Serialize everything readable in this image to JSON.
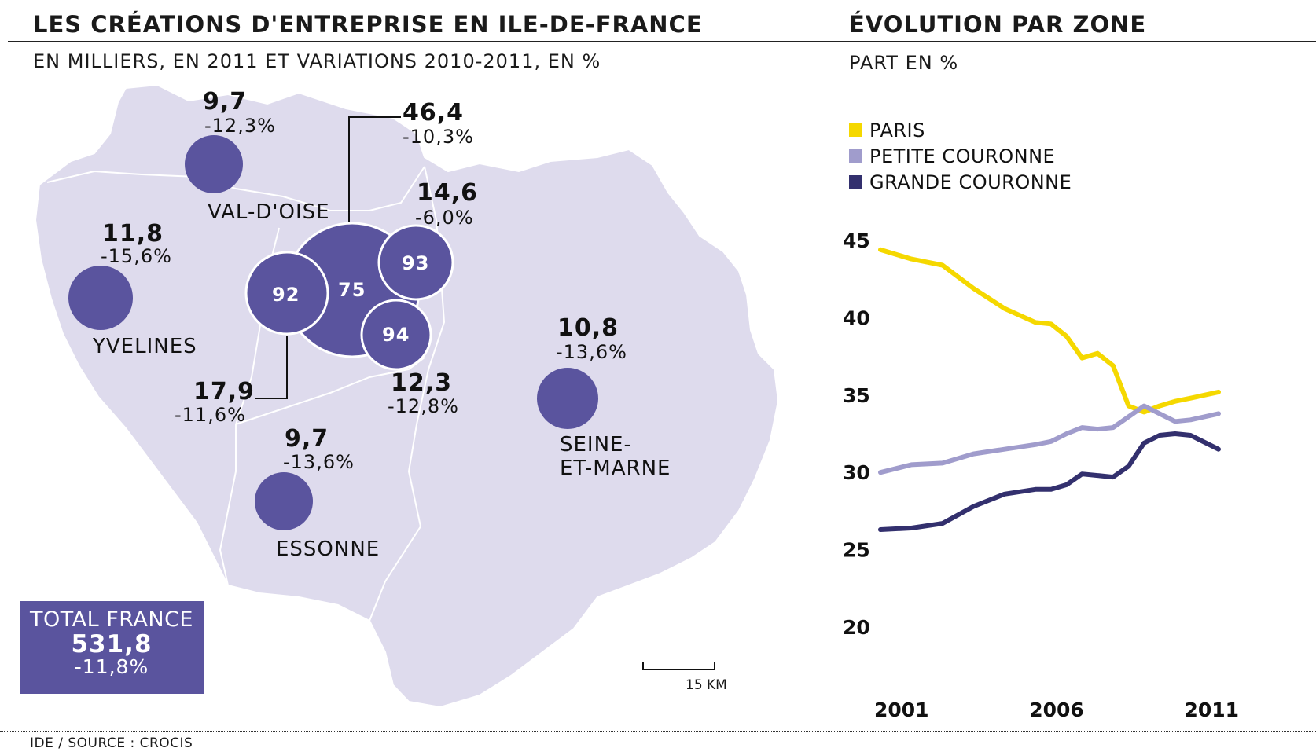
{
  "header": {
    "title": "LES CRÉATIONS D'ENTREPRISE EN ILE-DE-FRANCE",
    "subtitle": "EN MILLIERS, EN 2011 ET  VARIATIONS 2010-2011, EN %",
    "right_title": "ÉVOLUTION PAR ZONE",
    "right_subtitle": "PART EN %"
  },
  "map": {
    "departments": {
      "val_doise": {
        "name": "VAL-D'OISE",
        "value": "9,7",
        "variation": "-12,3%"
      },
      "yvelines": {
        "name": "YVELINES",
        "value": "11,8",
        "variation": "-15,6%"
      },
      "essonne": {
        "name": "ESSONNE",
        "value": "9,7",
        "variation": "-13,6%"
      },
      "seine_et_marne": {
        "name_line1": "SEINE-",
        "name_line2": "ET-MARNE",
        "value": "10,8",
        "variation": "-13,6%"
      },
      "paris": {
        "code": "75",
        "value": "46,4",
        "variation": "-10,3%"
      },
      "hauts_de_seine": {
        "code": "92",
        "value": "17,9",
        "variation": "-11,6%"
      },
      "seine_saint_denis": {
        "code": "93",
        "value": "14,6",
        "variation": "-6,0%"
      },
      "val_de_marne": {
        "code": "94",
        "value": "12,3",
        "variation": "-12,8%"
      }
    },
    "total": {
      "label": "TOTAL FRANCE",
      "value": "531,8",
      "variation": "-11,8%"
    },
    "scale_label": "15 KM",
    "colors": {
      "region_fill": "#dedbed",
      "bubble": "#5a549e"
    }
  },
  "source": "IDE / SOURCE : CROCIS",
  "chart_data": {
    "type": "line",
    "title": "ÉVOLUTION PAR ZONE",
    "subtitle": "PART EN %",
    "x_ticks": [
      "2001",
      "2006",
      "2011"
    ],
    "y_ticks": [
      "20",
      "25",
      "30",
      "35",
      "40",
      "45"
    ],
    "ylim": [
      20,
      45
    ],
    "xlim": [
      2001,
      2011.9
    ],
    "grid": false,
    "legend_position": "top-left",
    "series": [
      {
        "name": "PARIS",
        "color": "#f5d800",
        "x": [
          2001,
          2002,
          2003,
          2004,
          2005,
          2006,
          2006.5,
          2007,
          2007.5,
          2008,
          2008.5,
          2009,
          2009.5,
          2010,
          2010.5,
          2011,
          2011.9
        ],
        "y": [
          44.4,
          43.8,
          43.4,
          41.9,
          40.6,
          39.7,
          39.6,
          38.8,
          37.4,
          37.7,
          36.9,
          34.3,
          33.9,
          34.3,
          34.6,
          34.8,
          35.2
        ]
      },
      {
        "name": "PETITE COURONNE",
        "color": "#a09ccc",
        "x": [
          2001,
          2002,
          2003,
          2004,
          2005,
          2006,
          2006.5,
          2007,
          2007.5,
          2008,
          2008.5,
          2009,
          2009.5,
          2010,
          2010.5,
          2011,
          2011.9
        ],
        "y": [
          30.0,
          30.5,
          30.6,
          31.2,
          31.5,
          31.8,
          32.0,
          32.5,
          32.9,
          32.8,
          32.9,
          33.6,
          34.3,
          33.8,
          33.3,
          33.4,
          33.8
        ]
      },
      {
        "name": "GRANDE COURONNE",
        "color": "#33306e",
        "x": [
          2001,
          2002,
          2003,
          2004,
          2005,
          2006,
          2006.5,
          2007,
          2007.5,
          2008,
          2008.5,
          2009,
          2009.5,
          2010,
          2010.5,
          2011,
          2011.9
        ],
        "y": [
          26.3,
          26.4,
          26.7,
          27.8,
          28.6,
          28.9,
          28.9,
          29.2,
          29.9,
          29.8,
          29.7,
          30.4,
          31.9,
          32.4,
          32.5,
          32.4,
          31.5
        ]
      }
    ]
  }
}
